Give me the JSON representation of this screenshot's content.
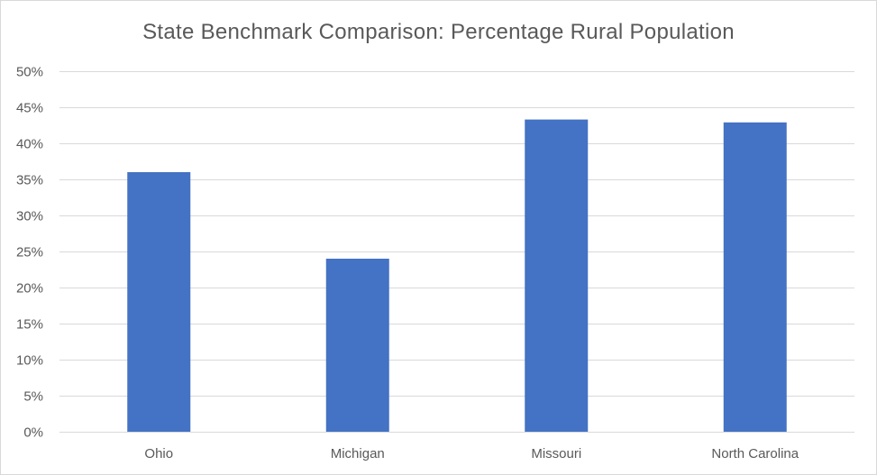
{
  "chart_data": {
    "type": "bar",
    "title": "State Benchmark Comparison: Percentage Rural Population",
    "categories": [
      "Ohio",
      "Michigan",
      "Missouri",
      "North Carolina"
    ],
    "values": [
      36.0,
      24.0,
      43.3,
      42.9
    ],
    "y_unit": "%",
    "ylim": [
      0,
      50
    ],
    "y_ticks": [
      "0%",
      "5%",
      "10%",
      "15%",
      "20%",
      "25%",
      "30%",
      "35%",
      "40%",
      "45%",
      "50%"
    ],
    "y_tick_values": [
      0,
      5,
      10,
      15,
      20,
      25,
      30,
      35,
      40,
      45,
      50
    ],
    "grid": true,
    "legend": "none",
    "bar_color": "#4472c4",
    "grid_color": "#d9d9d9"
  }
}
